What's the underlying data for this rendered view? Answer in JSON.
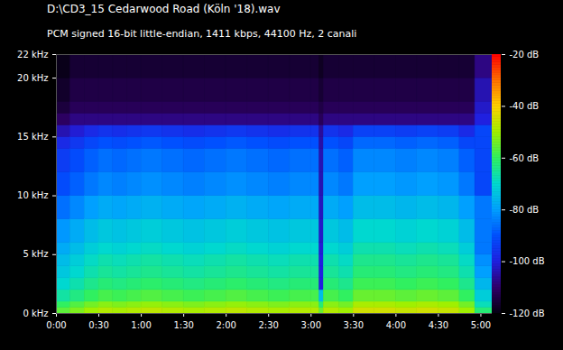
{
  "chart_data": {
    "type": "heatmap",
    "title": "D:\\CD3_15 Cedarwood Road (Köln '18).wav",
    "subtitle": "PCM signed 16-bit little-endian, 1411 kbps, 44100 Hz, 2 canali",
    "xlim": [
      0,
      308
    ],
    "ylim": [
      0,
      22
    ],
    "xticks": [
      {
        "value": 0,
        "label": "0:00"
      },
      {
        "value": 30,
        "label": "0:30"
      },
      {
        "value": 60,
        "label": "1:00"
      },
      {
        "value": 90,
        "label": "1:30"
      },
      {
        "value": 120,
        "label": "2:00"
      },
      {
        "value": 150,
        "label": "2:30"
      },
      {
        "value": 180,
        "label": "3:00"
      },
      {
        "value": 210,
        "label": "3:30"
      },
      {
        "value": 240,
        "label": "4:00"
      },
      {
        "value": 270,
        "label": "4:30"
      },
      {
        "value": 300,
        "label": "5:00"
      }
    ],
    "yticks": [
      {
        "value": 0,
        "label": "0 kHz"
      },
      {
        "value": 5,
        "label": "5 kHz"
      },
      {
        "value": 10,
        "label": "10 kHz"
      },
      {
        "value": 15,
        "label": "15 kHz"
      },
      {
        "value": 20,
        "label": "20 kHz"
      },
      {
        "value": 22,
        "label": "22 kHz"
      }
    ],
    "x_bins": [
      0,
      10,
      20,
      30,
      40,
      50,
      60,
      75,
      90,
      105,
      120,
      135,
      150,
      165,
      180,
      186,
      189,
      200,
      210,
      225,
      240,
      255,
      270,
      285,
      296,
      308
    ],
    "y_bins": [
      0,
      0.5,
      1,
      2,
      3,
      4,
      5,
      6,
      8,
      10,
      12,
      14,
      15,
      16,
      17,
      18,
      20,
      22
    ],
    "cells": [
      [
        -56,
        -53,
        -50,
        -48,
        -49,
        -48,
        -47,
        -48,
        -49,
        -48,
        -47,
        -48,
        -49,
        -48,
        -48,
        -55,
        -48,
        -50,
        -45,
        -45,
        -46,
        -45,
        -46,
        -50,
        -62
      ],
      [
        -60,
        -57,
        -54,
        -52,
        -53,
        -52,
        -51,
        -52,
        -53,
        -52,
        -51,
        -52,
        -53,
        -52,
        -52,
        -62,
        -52,
        -54,
        -49,
        -49,
        -50,
        -49,
        -50,
        -54,
        -68
      ],
      [
        -66,
        -63,
        -60,
        -58,
        -59,
        -58,
        -57,
        -58,
        -59,
        -58,
        -57,
        -58,
        -59,
        -58,
        -58,
        -75,
        -58,
        -60,
        -55,
        -55,
        -56,
        -55,
        -56,
        -60,
        -72
      ],
      [
        -70,
        -67,
        -64,
        -62,
        -63,
        -62,
        -61,
        -62,
        -63,
        -62,
        -61,
        -62,
        -63,
        -62,
        -62,
        -100,
        -62,
        -64,
        -59,
        -59,
        -60,
        -59,
        -60,
        -64,
        -76
      ],
      [
        -73,
        -70,
        -67,
        -65,
        -66,
        -65,
        -64,
        -65,
        -66,
        -65,
        -64,
        -65,
        -66,
        -65,
        -65,
        -100,
        -65,
        -67,
        -62,
        -62,
        -63,
        -62,
        -63,
        -67,
        -80
      ],
      [
        -75,
        -72,
        -69,
        -67,
        -68,
        -67,
        -66,
        -67,
        -68,
        -67,
        -66,
        -67,
        -68,
        -67,
        -67,
        -100,
        -67,
        -69,
        -64,
        -64,
        -65,
        -64,
        -65,
        -69,
        -82
      ],
      [
        -78,
        -75,
        -72,
        -70,
        -71,
        -70,
        -69,
        -70,
        -71,
        -70,
        -69,
        -70,
        -71,
        -70,
        -70,
        -101,
        -70,
        -72,
        -67,
        -67,
        -68,
        -67,
        -68,
        -72,
        -85
      ],
      [
        -81,
        -78,
        -75,
        -73,
        -74,
        -73,
        -72,
        -73,
        -74,
        -73,
        -72,
        -73,
        -74,
        -73,
        -73,
        -102,
        -73,
        -75,
        -70,
        -70,
        -71,
        -70,
        -71,
        -75,
        -85
      ],
      [
        -86,
        -83,
        -80,
        -78,
        -79,
        -78,
        -77,
        -78,
        -79,
        -78,
        -77,
        -78,
        -79,
        -78,
        -78,
        -103,
        -78,
        -80,
        -75,
        -75,
        -76,
        -75,
        -76,
        -80,
        -85
      ],
      [
        -91,
        -88,
        -85,
        -83,
        -84,
        -83,
        -82,
        -83,
        -84,
        -83,
        -82,
        -83,
        -84,
        -83,
        -83,
        -104,
        -83,
        -85,
        -80,
        -80,
        -81,
        -80,
        -81,
        -85,
        -92
      ],
      [
        -94,
        -91,
        -88,
        -86,
        -87,
        -86,
        -85,
        -86,
        -87,
        -86,
        -85,
        -86,
        -87,
        -86,
        -86,
        -104,
        -86,
        -88,
        -83,
        -83,
        -84,
        -83,
        -84,
        -88,
        -92
      ],
      [
        -98,
        -95,
        -92,
        -90,
        -91,
        -90,
        -89,
        -90,
        -91,
        -90,
        -89,
        -90,
        -91,
        -90,
        -90,
        -105,
        -90,
        -92,
        -87,
        -87,
        -88,
        -87,
        -88,
        -92,
        -92
      ],
      [
        -104,
        -101,
        -98,
        -96,
        -97,
        -96,
        -95,
        -96,
        -97,
        -96,
        -95,
        -96,
        -97,
        -96,
        -96,
        -106,
        -96,
        -98,
        -93,
        -93,
        -94,
        -93,
        -94,
        -98,
        -92
      ],
      [
        -111,
        -108,
        -108,
        -108,
        -108,
        -108,
        -108,
        -108,
        -108,
        -108,
        -108,
        -108,
        -108,
        -108,
        -108,
        -112,
        -108,
        -108,
        -108,
        -108,
        -108,
        -108,
        -108,
        -108,
        -100
      ],
      [
        -115,
        -112,
        -112,
        -112,
        -112,
        -112,
        -112,
        -112,
        -112,
        -112,
        -112,
        -112,
        -112,
        -112,
        -112,
        -114,
        -112,
        -112,
        -112,
        -112,
        -112,
        -112,
        -112,
        -112,
        -102
      ],
      [
        -117,
        -114,
        -114,
        -114,
        -114,
        -114,
        -114,
        -114,
        -114,
        -114,
        -114,
        -114,
        -114,
        -114,
        -114,
        -116,
        -114,
        -114,
        -114,
        -114,
        -114,
        -114,
        -114,
        -114,
        -104
      ],
      [
        -119,
        -116,
        -116,
        -116,
        -116,
        -116,
        -116,
        -116,
        -116,
        -116,
        -116,
        -116,
        -116,
        -116,
        -116,
        -118,
        -116,
        -116,
        -116,
        -116,
        -116,
        -116,
        -116,
        -116,
        -108
      ]
    ],
    "colorbar": {
      "range": [
        -120,
        -20
      ],
      "ticks": [
        {
          "value": -120,
          "label": "-120 dB"
        },
        {
          "value": -100,
          "label": "-100 dB"
        },
        {
          "value": -80,
          "label": "-80 dB"
        },
        {
          "value": -60,
          "label": "-60 dB"
        },
        {
          "value": -40,
          "label": "-40 dB"
        },
        {
          "value": -20,
          "label": "-20 dB"
        }
      ]
    }
  }
}
